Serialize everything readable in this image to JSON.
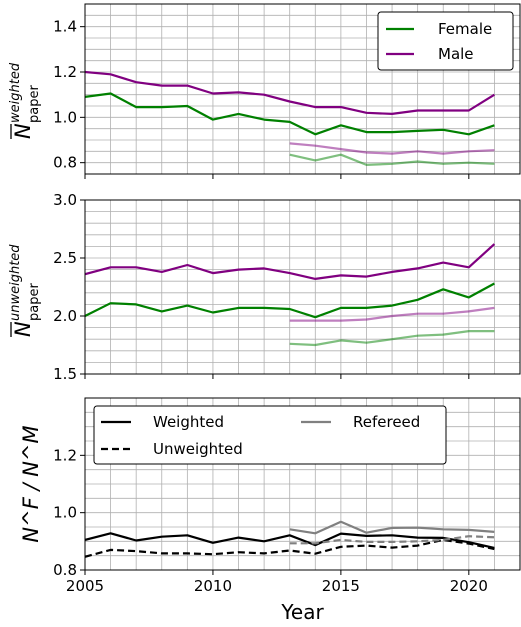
{
  "chart_data": [
    {
      "id": "top",
      "type": "line",
      "ylabel": {
        "main": "N",
        "sup": "weighted",
        "sub": "paper"
      },
      "xlim": [
        2005,
        2022
      ],
      "ylim": [
        0.75,
        1.5
      ],
      "yticks": [
        0.8,
        1.0,
        1.2,
        1.4
      ],
      "ytick_labels": [
        "0.8",
        "1.0",
        "1.2",
        "1.4"
      ],
      "yminor_step": 0.05,
      "grid": true,
      "legend": {
        "position": "top-right",
        "entries": [
          {
            "name": "Female",
            "color": "#008000"
          },
          {
            "name": "Male",
            "color": "#800080"
          }
        ]
      },
      "series": [
        {
          "name": "Male",
          "color": "#800080",
          "alpha": 1,
          "dash": "",
          "x": [
            2005,
            2006,
            2007,
            2008,
            2009,
            2010,
            2011,
            2012,
            2013,
            2014,
            2015,
            2016,
            2017,
            2018,
            2019,
            2020,
            2021
          ],
          "y": [
            1.2,
            1.19,
            1.155,
            1.14,
            1.14,
            1.105,
            1.11,
            1.1,
            1.07,
            1.045,
            1.045,
            1.02,
            1.015,
            1.03,
            1.03,
            1.03,
            1.1
          ]
        },
        {
          "name": "Female",
          "color": "#008000",
          "alpha": 1,
          "dash": "",
          "x": [
            2005,
            2006,
            2007,
            2008,
            2009,
            2010,
            2011,
            2012,
            2013,
            2014,
            2015,
            2016,
            2017,
            2018,
            2019,
            2020,
            2021
          ],
          "y": [
            1.09,
            1.105,
            1.045,
            1.045,
            1.05,
            0.99,
            1.015,
            0.99,
            0.98,
            0.925,
            0.965,
            0.935,
            0.935,
            0.94,
            0.945,
            0.925,
            0.965
          ]
        },
        {
          "name": "",
          "color": "#800080",
          "alpha": 0.5,
          "dash": "",
          "x": [
            2013,
            2014,
            2015,
            2016,
            2017,
            2018,
            2019,
            2020,
            2021
          ],
          "y": [
            0.885,
            0.875,
            0.86,
            0.845,
            0.84,
            0.85,
            0.84,
            0.85,
            0.855
          ]
        },
        {
          "name": "",
          "color": "#008000",
          "alpha": 0.5,
          "dash": "",
          "x": [
            2013,
            2014,
            2015,
            2016,
            2017,
            2018,
            2019,
            2020,
            2021
          ],
          "y": [
            0.835,
            0.81,
            0.835,
            0.79,
            0.795,
            0.805,
            0.795,
            0.8,
            0.795
          ]
        }
      ]
    },
    {
      "id": "middle",
      "type": "line",
      "ylabel": {
        "main": "N",
        "sup": "unweighted",
        "sub": "paper"
      },
      "xlim": [
        2005,
        2022
      ],
      "ylim": [
        1.5,
        3.0
      ],
      "yticks": [
        1.5,
        2.0,
        2.5,
        3.0
      ],
      "ytick_labels": [
        "1.5",
        "2.0",
        "2.5",
        "3.0"
      ],
      "yminor_step": 0.1,
      "grid": true,
      "series": [
        {
          "name": "Male",
          "color": "#800080",
          "alpha": 1,
          "dash": "",
          "x": [
            2005,
            2006,
            2007,
            2008,
            2009,
            2010,
            2011,
            2012,
            2013,
            2014,
            2015,
            2016,
            2017,
            2018,
            2019,
            2020,
            2021
          ],
          "y": [
            2.36,
            2.42,
            2.42,
            2.38,
            2.44,
            2.37,
            2.4,
            2.41,
            2.37,
            2.32,
            2.35,
            2.34,
            2.38,
            2.41,
            2.46,
            2.42,
            2.62
          ]
        },
        {
          "name": "Female",
          "color": "#008000",
          "alpha": 1,
          "dash": "",
          "x": [
            2005,
            2006,
            2007,
            2008,
            2009,
            2010,
            2011,
            2012,
            2013,
            2014,
            2015,
            2016,
            2017,
            2018,
            2019,
            2020,
            2021
          ],
          "y": [
            2.0,
            2.11,
            2.1,
            2.04,
            2.09,
            2.03,
            2.07,
            2.07,
            2.06,
            1.99,
            2.07,
            2.07,
            2.09,
            2.14,
            2.23,
            2.16,
            2.28
          ]
        },
        {
          "name": "",
          "color": "#800080",
          "alpha": 0.5,
          "dash": "",
          "x": [
            2013,
            2014,
            2015,
            2016,
            2017,
            2018,
            2019,
            2020,
            2021
          ],
          "y": [
            1.96,
            1.96,
            1.96,
            1.97,
            2.0,
            2.02,
            2.02,
            2.04,
            2.07
          ]
        },
        {
          "name": "",
          "color": "#008000",
          "alpha": 0.5,
          "dash": "",
          "x": [
            2013,
            2014,
            2015,
            2016,
            2017,
            2018,
            2019,
            2020,
            2021
          ],
          "y": [
            1.76,
            1.75,
            1.79,
            1.77,
            1.8,
            1.83,
            1.84,
            1.87,
            1.87
          ]
        }
      ]
    },
    {
      "id": "bottom",
      "type": "line",
      "ylabel": {
        "text": "N^F / N^M"
      },
      "xlabel": "Year",
      "xlim": [
        2005,
        2022
      ],
      "xticks": [
        2005,
        2010,
        2015,
        2020
      ],
      "xtick_labels": [
        "2005",
        "2010",
        "2015",
        "2020"
      ],
      "ylim": [
        0.8,
        1.4
      ],
      "yticks": [
        0.8,
        1.0,
        1.2
      ],
      "ytick_labels": [
        "0.8",
        "1.0",
        "1.2"
      ],
      "yminor_step": 0.05,
      "grid": true,
      "legend": {
        "position": "top-left",
        "entries": [
          {
            "name": "Weighted",
            "color": "#000000",
            "dash": ""
          },
          {
            "name": "Unweighted",
            "color": "#000000",
            "dash": "7,4"
          },
          {
            "name": "Refereed",
            "color": "#808080",
            "dash": ""
          }
        ]
      },
      "series": [
        {
          "name": "Weighted",
          "color": "#000000",
          "alpha": 1,
          "dash": "",
          "x": [
            2005,
            2006,
            2007,
            2008,
            2009,
            2010,
            2011,
            2012,
            2013,
            2014,
            2015,
            2016,
            2017,
            2018,
            2019,
            2020,
            2021
          ],
          "y": [
            0.905,
            0.928,
            0.903,
            0.916,
            0.921,
            0.895,
            0.913,
            0.9,
            0.921,
            0.887,
            0.927,
            0.919,
            0.921,
            0.913,
            0.912,
            0.897,
            0.877
          ]
        },
        {
          "name": "Unweighted",
          "color": "#000000",
          "alpha": 1,
          "dash": "7,4",
          "x": [
            2005,
            2006,
            2007,
            2008,
            2009,
            2010,
            2011,
            2012,
            2013,
            2014,
            2015,
            2016,
            2017,
            2018,
            2019,
            2020,
            2021
          ],
          "y": [
            0.846,
            0.87,
            0.866,
            0.858,
            0.858,
            0.855,
            0.862,
            0.858,
            0.868,
            0.857,
            0.881,
            0.885,
            0.878,
            0.885,
            0.905,
            0.892,
            0.873
          ]
        },
        {
          "name": "Refereed",
          "color": "#808080",
          "alpha": 1,
          "dash": "",
          "x": [
            2013,
            2014,
            2015,
            2016,
            2017,
            2018,
            2019,
            2020,
            2021
          ],
          "y": [
            0.942,
            0.928,
            0.968,
            0.93,
            0.947,
            0.948,
            0.942,
            0.94,
            0.933
          ]
        },
        {
          "name": "",
          "color": "#808080",
          "alpha": 1,
          "dash": "7,4",
          "x": [
            2013,
            2014,
            2015,
            2016,
            2017,
            2018,
            2019,
            2020,
            2021
          ],
          "y": [
            0.893,
            0.893,
            0.905,
            0.898,
            0.898,
            0.9,
            0.905,
            0.918,
            0.914
          ]
        }
      ]
    }
  ]
}
